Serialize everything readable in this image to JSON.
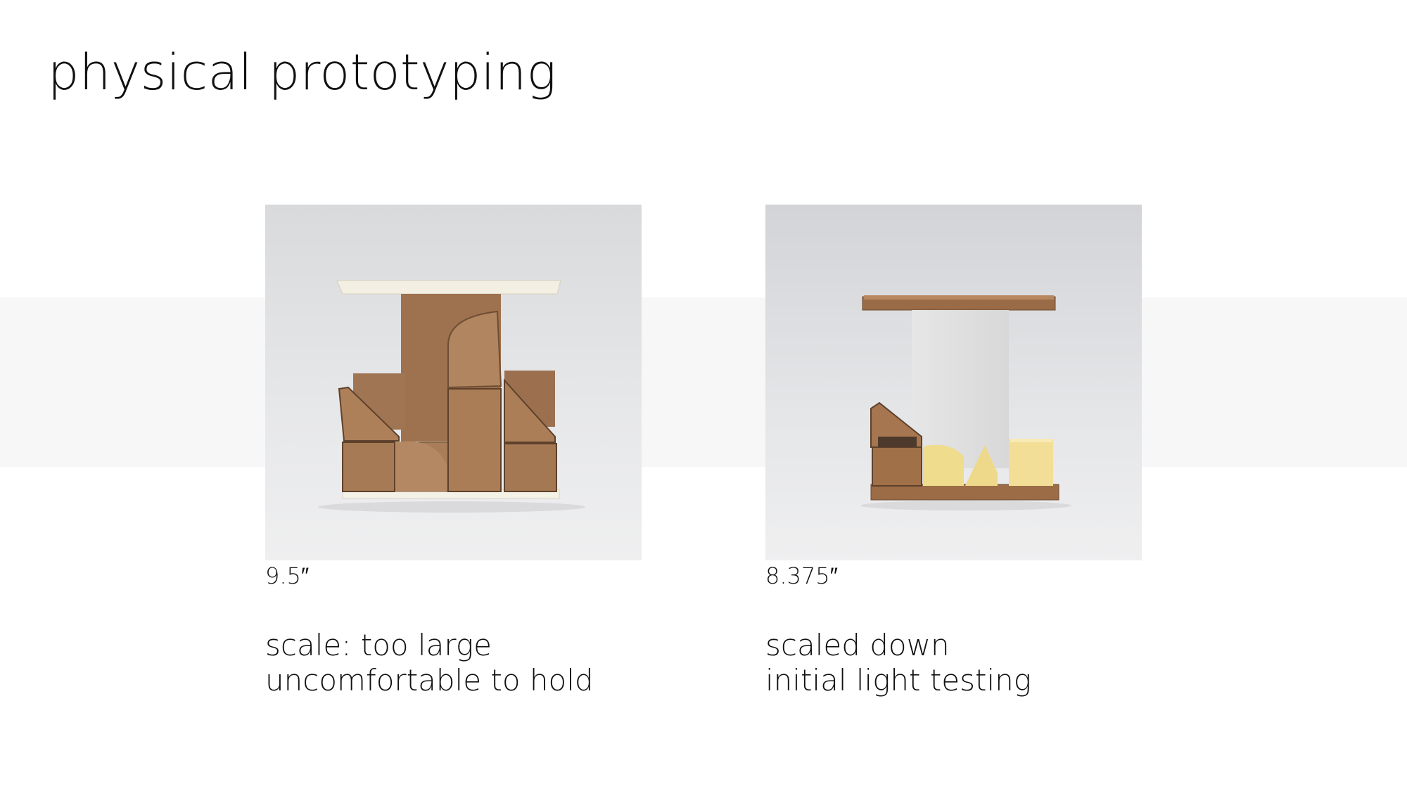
{
  "slide": {
    "title": "physical prototyping",
    "prototypes": [
      {
        "dimension": "9.5″",
        "caption_lines": [
          "scale: too large",
          "uncomfortable to hold"
        ]
      },
      {
        "dimension": "8.375″",
        "caption_lines": [
          "scaled down",
          "initial light testing"
        ]
      }
    ]
  },
  "colors": {
    "background": "#ffffff",
    "band": "#f7f7f7",
    "text": "#111111",
    "cardboard": "#a87953",
    "foam": "#f1dd93",
    "white_board": "#f3efe2"
  }
}
